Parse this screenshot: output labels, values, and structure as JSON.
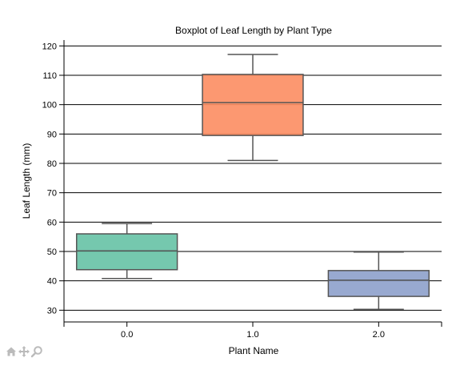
{
  "chart_data": {
    "type": "box",
    "title": "Boxplot of Leaf Length by Plant Type",
    "xlabel": "Plant Name",
    "ylabel": "Leaf Length (mm)",
    "categories": [
      "0.0",
      "1.0",
      "2.0"
    ],
    "ylim": [
      26,
      122
    ],
    "yticks": [
      30,
      40,
      50,
      60,
      70,
      80,
      90,
      100,
      110,
      120
    ],
    "grid": "horizontal",
    "boxes": [
      {
        "category": "0.0",
        "min": 40.8,
        "q1": 43.8,
        "median": 50.2,
        "q3": 56.0,
        "max": 59.5,
        "color": "#66c2a5"
      },
      {
        "category": "1.0",
        "min": 81.0,
        "q1": 89.5,
        "median": 100.7,
        "q3": 110.3,
        "max": 117.1,
        "color": "#fc8d62"
      },
      {
        "category": "2.0",
        "min": 30.3,
        "q1": 34.7,
        "median": 40.2,
        "q3": 43.5,
        "max": 49.8,
        "color": "#8da0cb"
      }
    ]
  },
  "toolbar": {
    "buttons": [
      {
        "icon": "home-icon"
      },
      {
        "icon": "pan-icon"
      },
      {
        "icon": "zoom-icon"
      }
    ]
  }
}
